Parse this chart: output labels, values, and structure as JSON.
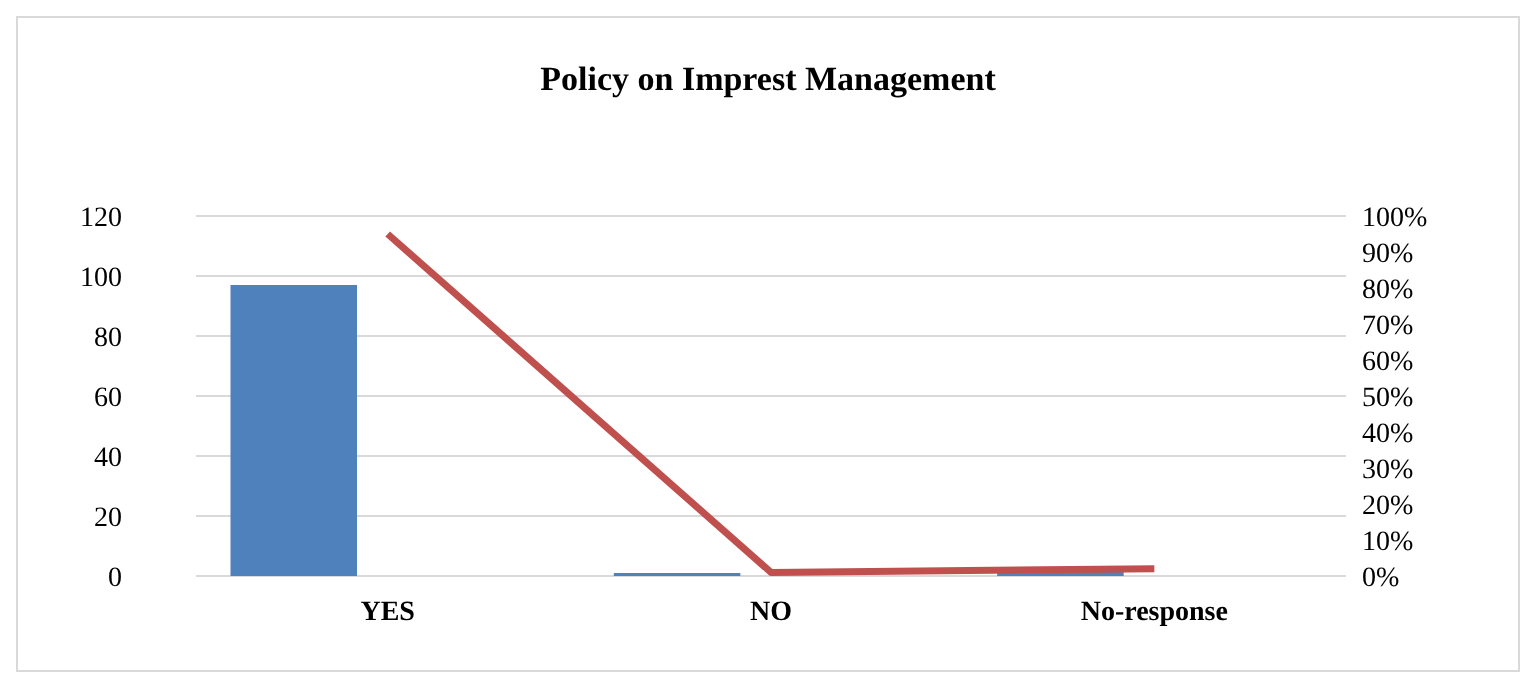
{
  "chart_data": {
    "type": "bar",
    "title": "Policy on Imprest Management",
    "categories": [
      "YES",
      "NO",
      "No-response"
    ],
    "series": [
      {
        "color": "#4f81bd",
        "values": [
          97,
          1,
          2
        ]
      },
      {
        "type": "line",
        "axis": "y2",
        "color": "#c0504d",
        "values": [
          95,
          1,
          2
        ]
      }
    ],
    "ylim": [
      0,
      120
    ],
    "yticks": [
      0,
      20,
      40,
      60,
      80,
      100,
      120
    ],
    "y2lim": [
      0,
      100
    ],
    "y2ticks": [
      {
        "value": 0,
        "label": "0%"
      },
      {
        "value": 10,
        "label": "10%"
      },
      {
        "value": 20,
        "label": "20%"
      },
      {
        "value": 30,
        "label": "30%"
      },
      {
        "value": 40,
        "label": "40%"
      },
      {
        "value": 50,
        "label": "50%"
      },
      {
        "value": 60,
        "label": "60%"
      },
      {
        "value": 70,
        "label": "70%"
      },
      {
        "value": 80,
        "label": "80%"
      },
      {
        "value": 90,
        "label": "90%"
      },
      {
        "value": 100,
        "label": "100%"
      }
    ],
    "grid": "y",
    "marker": "none",
    "line_style": "solid"
  }
}
